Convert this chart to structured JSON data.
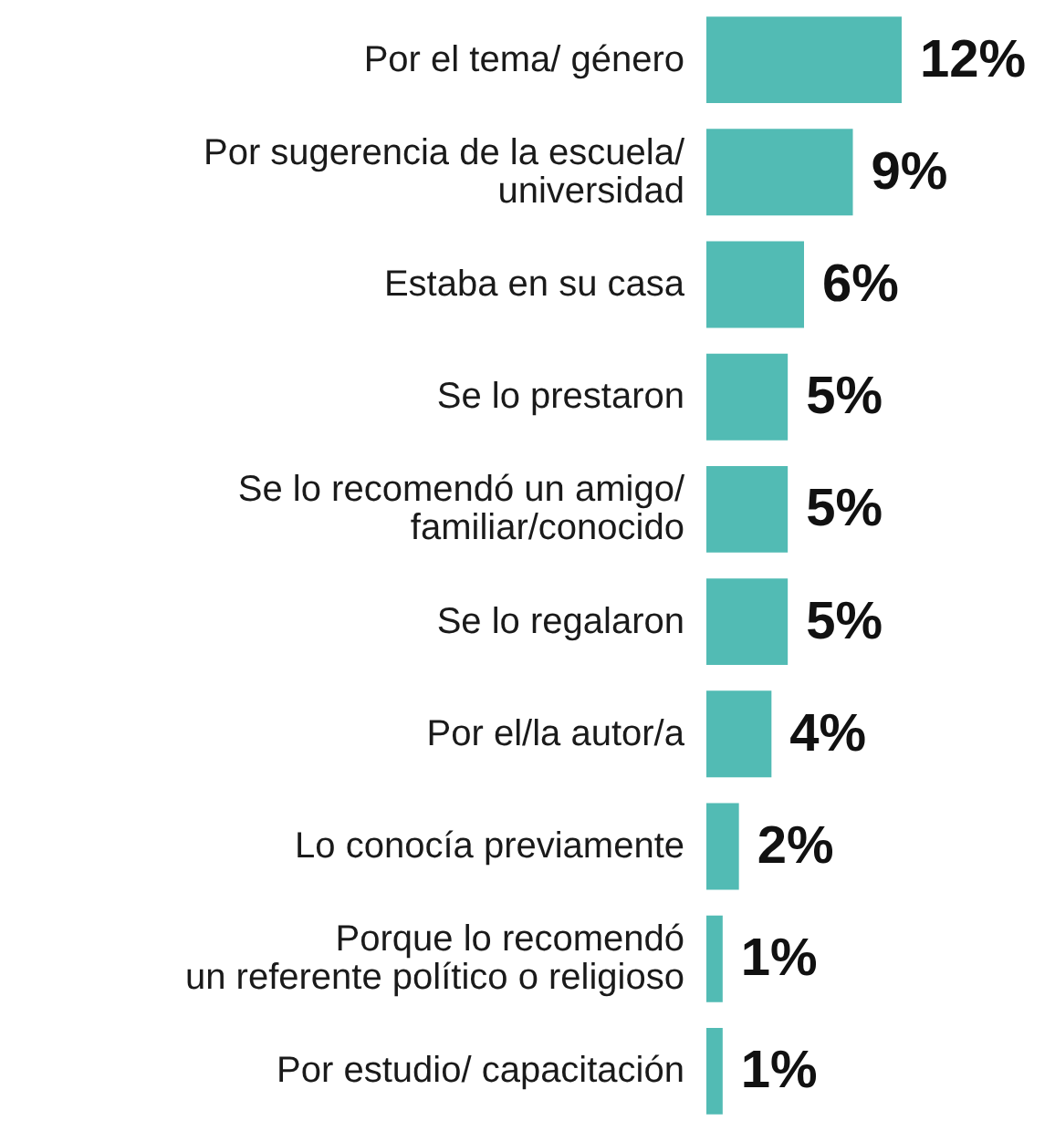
{
  "chart_data": {
    "type": "bar",
    "orientation": "horizontal",
    "categories": [
      "Por el tema/ género",
      "Por sugerencia de la escuela/\nuniversidad",
      "Estaba en su casa",
      "Se lo prestaron",
      "Se lo recomendó un amigo/\nfamiliar/conocido",
      "Se lo regalaron",
      "Por el/la autor/a",
      "Lo conocía previamente",
      "Porque lo recomendó\nun referente político o religioso",
      "Por estudio/ capacitación"
    ],
    "values": [
      12,
      9,
      6,
      5,
      5,
      5,
      4,
      2,
      1,
      1
    ],
    "value_labels": [
      "12%",
      "9%",
      "6%",
      "5%",
      "5%",
      "5%",
      "4%",
      "2%",
      "1%",
      "1%"
    ],
    "color": "#52bbb4"
  }
}
